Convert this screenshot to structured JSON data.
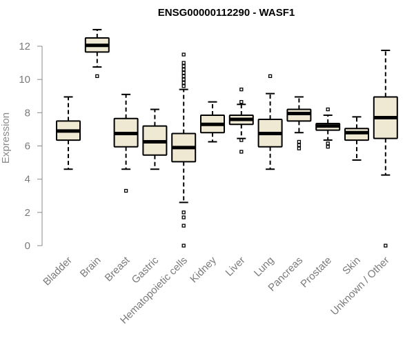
{
  "chart_data": {
    "type": "boxplot",
    "title": "ENSG00000112290 - WASF1",
    "xlabel": "",
    "ylabel": "Expression",
    "ylim": [
      0,
      13
    ],
    "yticks": [
      "0",
      "2",
      "4",
      "6",
      "8",
      "10",
      "12"
    ],
    "box_fill": "#efe8d2",
    "axis_color": "#8a8a8a",
    "categories": [
      "Bladder",
      "Brain",
      "Breast",
      "Gastric",
      "Hematopoietic cells",
      "Kidney",
      "Liver",
      "Lung",
      "Pancreas",
      "Prostate",
      "Skin",
      "Unknown / Other"
    ],
    "boxes": [
      {
        "q1": 6.35,
        "median": 6.9,
        "q3": 7.5,
        "whisker_low": 4.6,
        "whisker_high": 8.95,
        "outliers": []
      },
      {
        "q1": 11.65,
        "median": 12.05,
        "q3": 12.5,
        "whisker_low": 10.75,
        "whisker_high": 13.0,
        "outliers": [
          10.2
        ]
      },
      {
        "q1": 5.95,
        "median": 6.75,
        "q3": 7.65,
        "whisker_low": 4.6,
        "whisker_high": 9.1,
        "outliers": [
          3.3
        ]
      },
      {
        "q1": 5.45,
        "median": 6.25,
        "q3": 7.2,
        "whisker_low": 4.6,
        "whisker_high": 8.2,
        "outliers": []
      },
      {
        "q1": 5.05,
        "median": 5.9,
        "q3": 6.75,
        "whisker_low": 2.6,
        "whisker_high": 9.4,
        "outliers": [
          0.0,
          1.2,
          1.7,
          2.0,
          9.6,
          9.8,
          10.0,
          10.2,
          10.4,
          10.6,
          10.8,
          11.0,
          11.5
        ]
      },
      {
        "q1": 6.8,
        "median": 7.3,
        "q3": 7.85,
        "whisker_low": 6.25,
        "whisker_high": 8.65,
        "outliers": []
      },
      {
        "q1": 7.3,
        "median": 7.6,
        "q3": 7.85,
        "whisker_low": 6.45,
        "whisker_high": 8.5,
        "outliers": [
          5.65,
          6.35,
          8.65,
          9.4
        ]
      },
      {
        "q1": 5.95,
        "median": 6.75,
        "q3": 7.6,
        "whisker_low": 4.6,
        "whisker_high": 9.15,
        "outliers": [
          10.2
        ]
      },
      {
        "q1": 7.5,
        "median": 7.95,
        "q3": 8.2,
        "whisker_low": 6.8,
        "whisker_high": 8.95,
        "outliers": [
          5.85,
          6.05,
          6.25
        ]
      },
      {
        "q1": 6.95,
        "median": 7.2,
        "q3": 7.35,
        "whisker_low": 6.35,
        "whisker_high": 7.85,
        "outliers": [
          5.95,
          6.15,
          8.2
        ]
      },
      {
        "q1": 6.35,
        "median": 6.8,
        "q3": 7.05,
        "whisker_low": 5.15,
        "whisker_high": 7.75,
        "outliers": []
      },
      {
        "q1": 6.45,
        "median": 7.7,
        "q3": 8.95,
        "whisker_low": 4.25,
        "whisker_high": 11.75,
        "outliers": [
          0.0
        ]
      }
    ]
  }
}
